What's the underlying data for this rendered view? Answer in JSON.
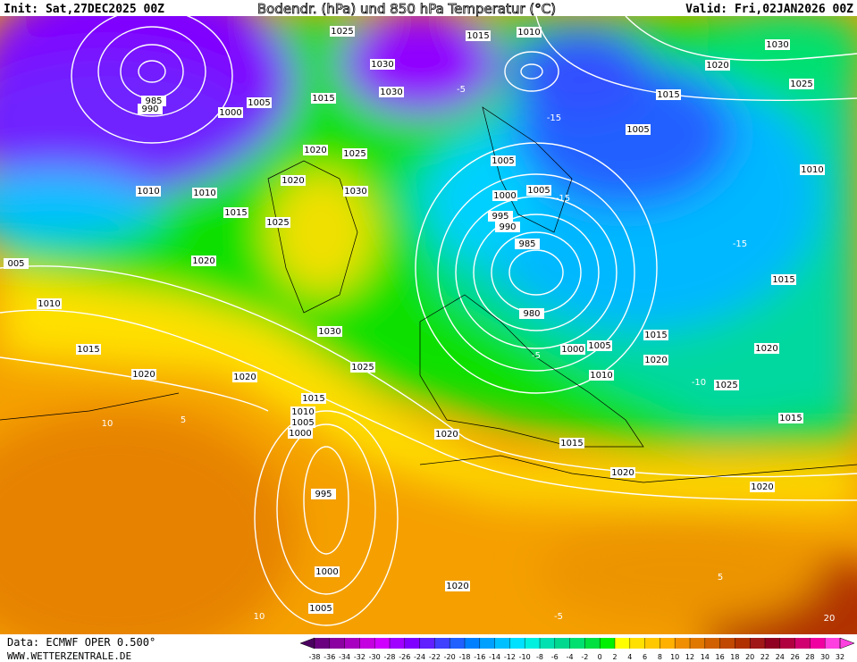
{
  "header": {
    "init": "Init: Sat,27DEC2025 00Z",
    "title": "Bodendr. (hPa) und 850 hPa Temperatur (°C)",
    "valid": "Valid: Fri,02JAN2026 00Z"
  },
  "footer": {
    "source": "Data: ECMWF OPER 0.500°",
    "site": "WWW.WETTERZENTRALE.DE"
  },
  "pressure_labels": [
    "1025",
    "1015",
    "1010",
    "1030",
    "1020",
    "1025",
    "1030",
    "1030",
    "1005",
    "1000",
    "1015",
    "1015",
    "1005",
    "1020",
    "1025",
    "1020",
    "1030",
    "1010",
    "1010",
    "1015",
    "1025",
    "1005",
    "1000",
    "1005",
    "995",
    "990",
    "985",
    "980",
    "1000",
    "1005",
    "1015",
    "1020",
    "1010",
    "1025",
    "1020",
    "1015",
    "1010",
    "1020",
    "1010",
    "1015",
    "1020",
    "1020",
    "1025",
    "1030",
    "1015",
    "1010",
    "1005",
    "1000",
    "995",
    "1000",
    "1005",
    "1020",
    "1020",
    "1015",
    "1020",
    "1020",
    "1015",
    "005",
    "985",
    "990"
  ],
  "temperature_labels": [
    "-15",
    "-15",
    "-15",
    "-10",
    "-5",
    "-5",
    "5",
    "10",
    "10",
    "5",
    "-5",
    "20"
  ],
  "colorbar": {
    "ticks": [
      -38,
      -36,
      -34,
      -32,
      -30,
      -28,
      -26,
      -24,
      -22,
      -20,
      -18,
      -16,
      -14,
      -12,
      -10,
      -8,
      -6,
      -4,
      -2,
      0,
      2,
      4,
      6,
      8,
      10,
      12,
      14,
      16,
      18,
      20,
      22,
      24,
      26,
      28,
      30,
      32
    ],
    "colors": [
      "#4b0060",
      "#6a0080",
      "#8a00a0",
      "#a800c0",
      "#c400e0",
      "#d000ff",
      "#a000ff",
      "#8000ff",
      "#6020ff",
      "#4040ff",
      "#2060ff",
      "#0080ff",
      "#00a0ff",
      "#00c0ff",
      "#00e0ff",
      "#00f0e0",
      "#00e0b0",
      "#00d890",
      "#00e070",
      "#00e040",
      "#00f000",
      "#ffff00",
      "#ffe000",
      "#ffc800",
      "#ffb000",
      "#f09000",
      "#e07800",
      "#d06000",
      "#c04800",
      "#b03000",
      "#a01818",
      "#900020",
      "#b00040",
      "#d00070",
      "#f000a0",
      "#ff40e0",
      "#ff40e0"
    ]
  }
}
